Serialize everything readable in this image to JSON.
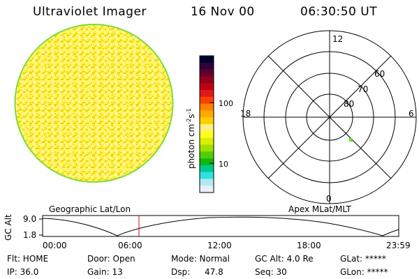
{
  "header": {
    "title": "Ultraviolet Imager",
    "date": "16 Nov 00",
    "time": "06:30:50 UT"
  },
  "colorbar": {
    "unit_label": "photon cm",
    "unit_exp1": "-2",
    "unit_s": "s",
    "unit_exp2": "-1",
    "ticks": [
      "100",
      "10"
    ],
    "colors": [
      "#000030",
      "#30003a",
      "#600030",
      "#90001c",
      "#c00010",
      "#e01818",
      "#ff4000",
      "#ff8000",
      "#ffa800",
      "#ffd000",
      "#fff080",
      "#ffff20",
      "#d8f000",
      "#a0e000",
      "#50d000",
      "#10b810",
      "#00c890",
      "#30e0e0",
      "#b0e8f0",
      "#e8f0f8"
    ]
  },
  "image_panel": {
    "fill_color": "#fff23d",
    "edge_color": "#7ddc3a"
  },
  "polar_plot": {
    "labels": {
      "top": "12",
      "left": "18",
      "right": "6",
      "bottom": "0",
      "ring60": "60",
      "ring70": "70",
      "ring80": "80"
    },
    "point_color": "#66dd33"
  },
  "altitude_plot": {
    "left_label": "Geographic Lat/Lon",
    "right_label": "Apex MLat/MLT",
    "axis_label": "GC Alt",
    "y_top": "9.0",
    "y_bottom": "1.8",
    "x_ticks": [
      "00:00",
      "06:00",
      "12:00",
      "18:00",
      "23:59"
    ],
    "current_time_marker_color": "#dd0000"
  },
  "status": {
    "flt": "Flt: HOME",
    "ip": "IP: 36.0",
    "door": "Door: Open",
    "gain": "Gain: 13",
    "mode": "Mode: Normal",
    "dsp_label": "Dsp:",
    "dsp_value": "47.8",
    "gc_alt": "GC Alt: 4.0 Re",
    "seq": "Seq: 30",
    "glat": "GLat: *****",
    "glon": "GLon: *****"
  }
}
